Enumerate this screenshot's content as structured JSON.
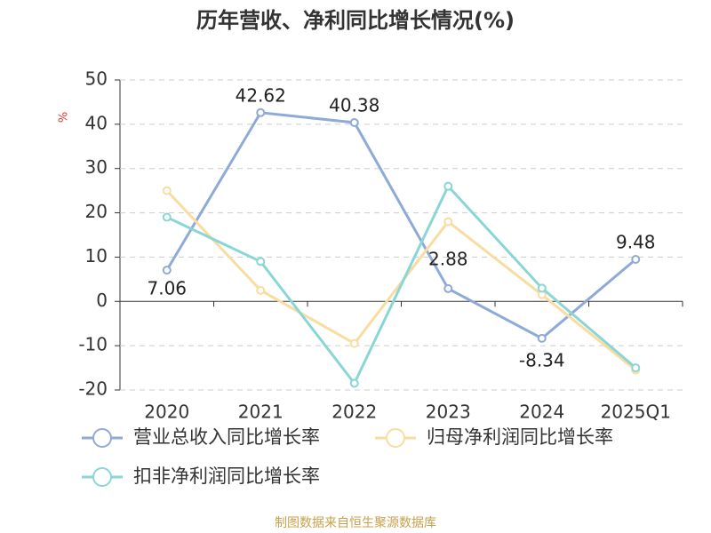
{
  "chart_data": {
    "type": "line",
    "title": "历年营收、净利同比增长情况(%)",
    "y_label": "%",
    "source": "制图数据来自恒生聚源数据库",
    "categories": [
      "2020",
      "2021",
      "2022",
      "2023",
      "2024",
      "2025Q1"
    ],
    "series": [
      {
        "name": "营业总收入同比增长率",
        "color": "#8eaad8",
        "values": [
          7.06,
          42.62,
          40.38,
          2.88,
          -8.34,
          9.48
        ],
        "show_labels": true
      },
      {
        "name": "归母净利润同比增长率",
        "color": "#f8dca0",
        "values": [
          25,
          2.5,
          -9.5,
          18,
          1.5,
          -15.5
        ],
        "show_labels": false
      },
      {
        "name": "扣非净利润同比增长率",
        "color": "#8ad6d6",
        "values": [
          19,
          9,
          -18.5,
          26,
          3,
          -15
        ],
        "show_labels": false
      }
    ],
    "ylim": [
      -20,
      50
    ],
    "yticks": [
      -20,
      -10,
      0,
      10,
      20,
      30,
      40,
      50
    ],
    "grid": true
  }
}
